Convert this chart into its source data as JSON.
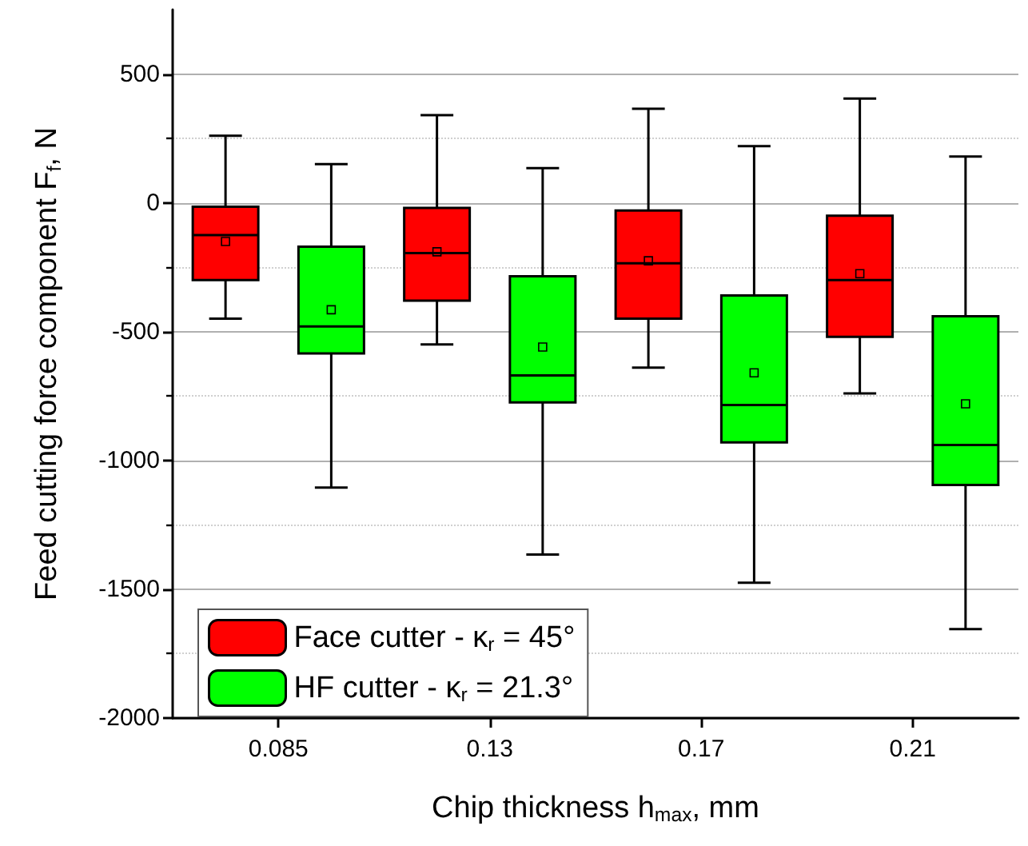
{
  "chart_data": {
    "type": "box",
    "xlabel": "Chip thickness h$_{max}$, mm",
    "ylabel": "Feed cutting force component F$_{f}$, N",
    "categories": [
      "0.085",
      "0.13",
      "0.17",
      "0.21"
    ],
    "ylim": [
      -2000,
      750
    ],
    "yticks": [
      -2000,
      -1500,
      -1000,
      -500,
      0,
      500
    ],
    "grid": "y",
    "legend": "bottom left",
    "series": [
      {
        "name": "Face cutter - κ$_{r}$ = 45°",
        "color": "#ff0000",
        "boxes": [
          {
            "low": -450,
            "q1": -300,
            "median": -125,
            "q3": -15,
            "high": 260,
            "mean": -150
          },
          {
            "low": -550,
            "q1": -380,
            "median": -195,
            "q3": -20,
            "high": 340,
            "mean": -190
          },
          {
            "low": -640,
            "q1": -450,
            "median": -235,
            "q3": -30,
            "high": 365,
            "mean": -225
          },
          {
            "low": -740,
            "q1": -520,
            "median": -300,
            "q3": -50,
            "high": 405,
            "mean": -275
          }
        ]
      },
      {
        "name": "HF cutter - κ$_{r}$ = 21.3°",
        "color": "#00ff00",
        "boxes": [
          {
            "low": -1105,
            "q1": -585,
            "median": -480,
            "q3": -170,
            "high": 150,
            "mean": -415
          },
          {
            "low": -1365,
            "q1": -775,
            "median": -670,
            "q3": -285,
            "high": 135,
            "mean": -560
          },
          {
            "low": -1475,
            "q1": -930,
            "median": -785,
            "q3": -360,
            "high": 220,
            "mean": -660
          },
          {
            "low": -1655,
            "q1": -1095,
            "median": -940,
            "q3": -440,
            "high": 180,
            "mean": -780
          }
        ]
      }
    ]
  }
}
